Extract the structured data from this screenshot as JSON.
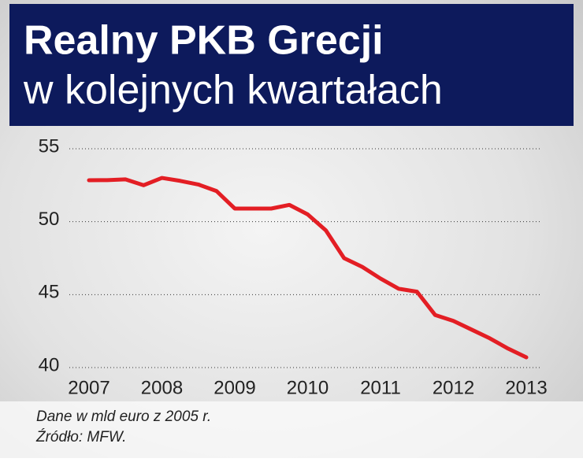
{
  "chart_data": {
    "type": "line",
    "title": [
      "Realny PKB Grecji",
      "w kolejnych kwartałach"
    ],
    "notes": [
      "Dane w mld euro z 2005 r.",
      "Źródło: MFW."
    ],
    "x": [
      2007,
      2007.25,
      2007.5,
      2007.75,
      2008,
      2008.25,
      2008.5,
      2008.75,
      2009,
      2009.25,
      2009.5,
      2009.75,
      2010,
      2010.25,
      2010.5,
      2010.75,
      2011,
      2011.25,
      2011.5,
      2011.75,
      2012,
      2012.25,
      2012.5,
      2012.75,
      2013
    ],
    "series": [
      {
        "color": "#e31e24",
        "values": [
          52.84,
          52.85,
          52.9,
          52.5,
          53.0,
          52.8,
          52.55,
          52.1,
          50.9,
          50.9,
          50.9,
          51.15,
          50.5,
          49.4,
          47.5,
          46.9,
          46.1,
          45.4,
          45.2,
          43.6,
          43.2,
          42.6,
          42.0,
          41.3,
          40.7
        ]
      }
    ],
    "xlim": [
      2006.65,
      2013.35
    ],
    "xticks": [
      2007,
      2008,
      2009,
      2010,
      2011,
      2012,
      2013
    ],
    "ylim": [
      40,
      55
    ],
    "yticks": [
      40,
      45,
      50,
      55
    ],
    "grid": true
  }
}
